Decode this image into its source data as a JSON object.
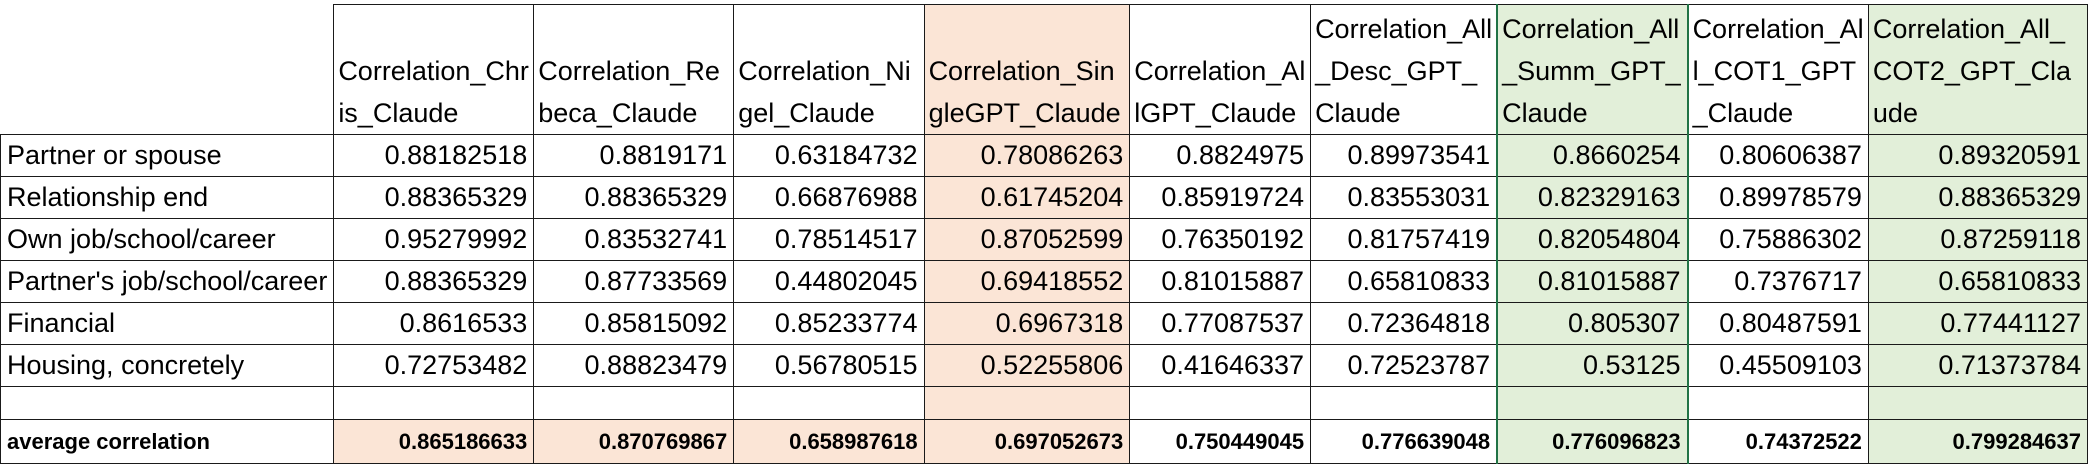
{
  "headers": [
    "Correlation_Chris_Claude",
    "Correlation_Rebeca_Claude",
    "Correlation_Nigel_Claude",
    "Correlation_SingleGPT_Claude",
    "Correlation_AllGPT_Claude",
    "Correlation_All_Desc_GPT_Claude",
    "Correlation_All_Summ_GPT_Claude",
    "Correlation_All_COT1_GPT_Claude",
    "Correlation_All_COT2_GPT_Claude"
  ],
  "rows": [
    {
      "label": "Partner or spouse",
      "values": [
        "0.88182518",
        "0.8819171",
        "0.63184732",
        "0.78086263",
        "0.8824975",
        "0.89973541",
        "0.8660254",
        "0.80606387",
        "0.89320591"
      ]
    },
    {
      "label": "Relationship end",
      "values": [
        "0.88365329",
        "0.88365329",
        "0.66876988",
        "0.61745204",
        "0.85919724",
        "0.83553031",
        "0.82329163",
        "0.89978579",
        "0.88365329"
      ]
    },
    {
      "label": "Own job/school/career",
      "values": [
        "0.95279992",
        "0.83532741",
        "0.78514517",
        "0.87052599",
        "0.76350192",
        "0.81757419",
        "0.82054804",
        "0.75886302",
        "0.87259118"
      ]
    },
    {
      "label": "Partner's job/school/career",
      "values": [
        "0.88365329",
        "0.87733569",
        "0.44802045",
        "0.69418552",
        "0.81015887",
        "0.65810833",
        "0.81015887",
        "0.7376717",
        "0.65810833"
      ]
    },
    {
      "label": "Financial",
      "values": [
        "0.8616533",
        "0.85815092",
        "0.85233774",
        "0.6967318",
        "0.77087537",
        "0.72364818",
        "0.805307",
        "0.80487591",
        "0.77441127"
      ]
    },
    {
      "label": "Housing, concretely",
      "values": [
        "0.72753482",
        "0.88823479",
        "0.56780515",
        "0.52255806",
        "0.41646337",
        "0.72523787",
        "0.53125",
        "0.45509103",
        "0.71373784"
      ]
    }
  ],
  "average": {
    "label": "average correlation",
    "values": [
      "0.865186633",
      "0.870769867",
      "0.658987618",
      "0.697052673",
      "0.750449045",
      "0.776639048",
      "0.776096823",
      "0.74372522",
      "0.799284637"
    ]
  },
  "colors": {
    "peach_fill": "#fbe5d6",
    "green_fill": "#e2efd9",
    "selection_border": "#217346"
  }
}
